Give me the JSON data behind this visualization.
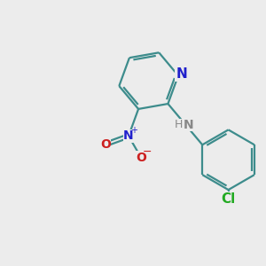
{
  "bg_color": "#ececec",
  "bond_color": "#3d8c8c",
  "n_color": "#2020cc",
  "o_color": "#cc2020",
  "cl_color": "#22aa22",
  "h_color": "#888888",
  "line_width": 1.6,
  "figsize": [
    3.0,
    3.0
  ],
  "dpi": 100,
  "xlim": [
    0,
    10
  ],
  "ylim": [
    0,
    10
  ]
}
